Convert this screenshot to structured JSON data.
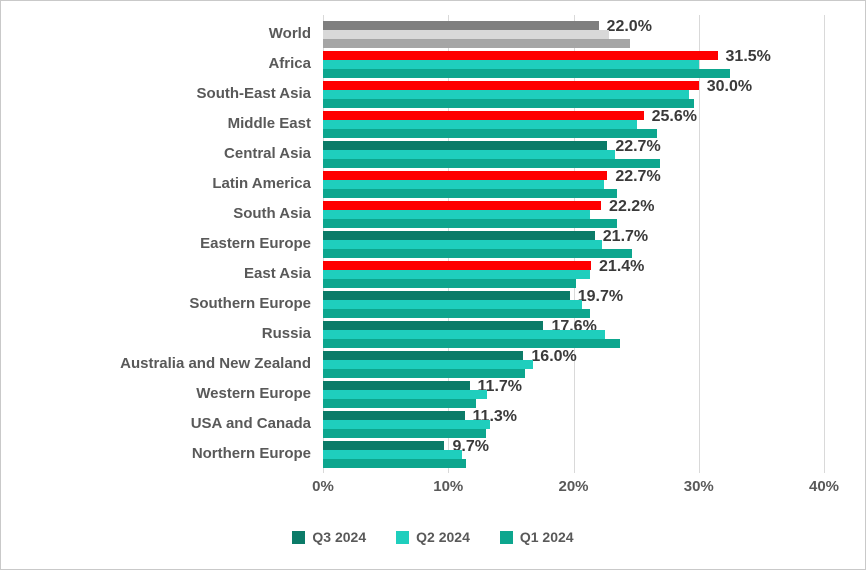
{
  "chart_data": {
    "type": "bar",
    "orientation": "horizontal",
    "title": "",
    "xlabel": "",
    "ylabel": "",
    "xlim": [
      0,
      40
    ],
    "grid": true,
    "legend_position": "bottom",
    "x_ticks": [
      "0%",
      "10%",
      "20%",
      "30%",
      "40%"
    ],
    "series": [
      {
        "name": "Q3 2024",
        "color": "#0b7b68"
      },
      {
        "name": "Q2 2024",
        "color": "#1fcebd"
      },
      {
        "name": "Q1 2024",
        "color": "#0da68e"
      }
    ],
    "highlight_color": "#fe0000",
    "note": "rows carry values for [Q3 2024, Q2 2024, Q1 2024]; Q3 value is the printed data label; Q2/Q1 estimated from gridlines",
    "rows": [
      {
        "category": "World",
        "label": "22.0%",
        "values": [
          22.0,
          22.8,
          24.5
        ],
        "colors": [
          "#7f7f7f",
          "#d8d8d8",
          "#a5a5a5"
        ]
      },
      {
        "category": "Africa",
        "label": "31.5%",
        "values": [
          31.5,
          30.0,
          32.5
        ],
        "colors": [
          "#fe0000",
          "#1fcebd",
          "#0da68e"
        ]
      },
      {
        "category": "South-East Asia",
        "label": "30.0%",
        "values": [
          30.0,
          29.2,
          29.6
        ],
        "colors": [
          "#fe0000",
          "#1fcebd",
          "#0da68e"
        ]
      },
      {
        "category": "Middle East",
        "label": "25.6%",
        "values": [
          25.6,
          25.1,
          26.7
        ],
        "colors": [
          "#fe0000",
          "#1fcebd",
          "#0da68e"
        ]
      },
      {
        "category": "Central Asia",
        "label": "22.7%",
        "values": [
          22.7,
          23.3,
          26.9
        ],
        "colors": [
          "#0b7b68",
          "#1fcebd",
          "#0da68e"
        ]
      },
      {
        "category": "Latin America",
        "label": "22.7%",
        "values": [
          22.7,
          22.4,
          23.5
        ],
        "colors": [
          "#fe0000",
          "#1fcebd",
          "#0da68e"
        ]
      },
      {
        "category": "South Asia",
        "label": "22.2%",
        "values": [
          22.2,
          21.3,
          23.5
        ],
        "colors": [
          "#fe0000",
          "#1fcebd",
          "#0da68e"
        ]
      },
      {
        "category": "Eastern Europe",
        "label": "21.7%",
        "values": [
          21.7,
          22.3,
          24.7
        ],
        "colors": [
          "#0b7b68",
          "#1fcebd",
          "#0da68e"
        ]
      },
      {
        "category": "East Asia",
        "label": "21.4%",
        "values": [
          21.4,
          21.3,
          20.2
        ],
        "colors": [
          "#fe0000",
          "#1fcebd",
          "#0da68e"
        ]
      },
      {
        "category": "Southern Europe",
        "label": "19.7%",
        "values": [
          19.7,
          20.7,
          21.3
        ],
        "colors": [
          "#0b7b68",
          "#1fcebd",
          "#0da68e"
        ]
      },
      {
        "category": "Russia",
        "label": "17.6%",
        "values": [
          17.6,
          22.5,
          23.7
        ],
        "colors": [
          "#0b7b68",
          "#1fcebd",
          "#0da68e"
        ]
      },
      {
        "category": "Australia and New Zealand",
        "label": "16.0%",
        "values": [
          16.0,
          16.8,
          16.1
        ],
        "colors": [
          "#0b7b68",
          "#1fcebd",
          "#0da68e"
        ]
      },
      {
        "category": "Western Europe",
        "label": "11.7%",
        "values": [
          11.7,
          13.1,
          12.2
        ],
        "colors": [
          "#0b7b68",
          "#1fcebd",
          "#0da68e"
        ]
      },
      {
        "category": "USA and Canada",
        "label": "11.3%",
        "values": [
          11.3,
          13.3,
          13.0
        ],
        "colors": [
          "#0b7b68",
          "#1fcebd",
          "#0da68e"
        ]
      },
      {
        "category": "Northern Europe",
        "label": "9.7%",
        "values": [
          9.7,
          11.1,
          11.4
        ],
        "colors": [
          "#0b7b68",
          "#1fcebd",
          "#0da68e"
        ]
      }
    ]
  }
}
